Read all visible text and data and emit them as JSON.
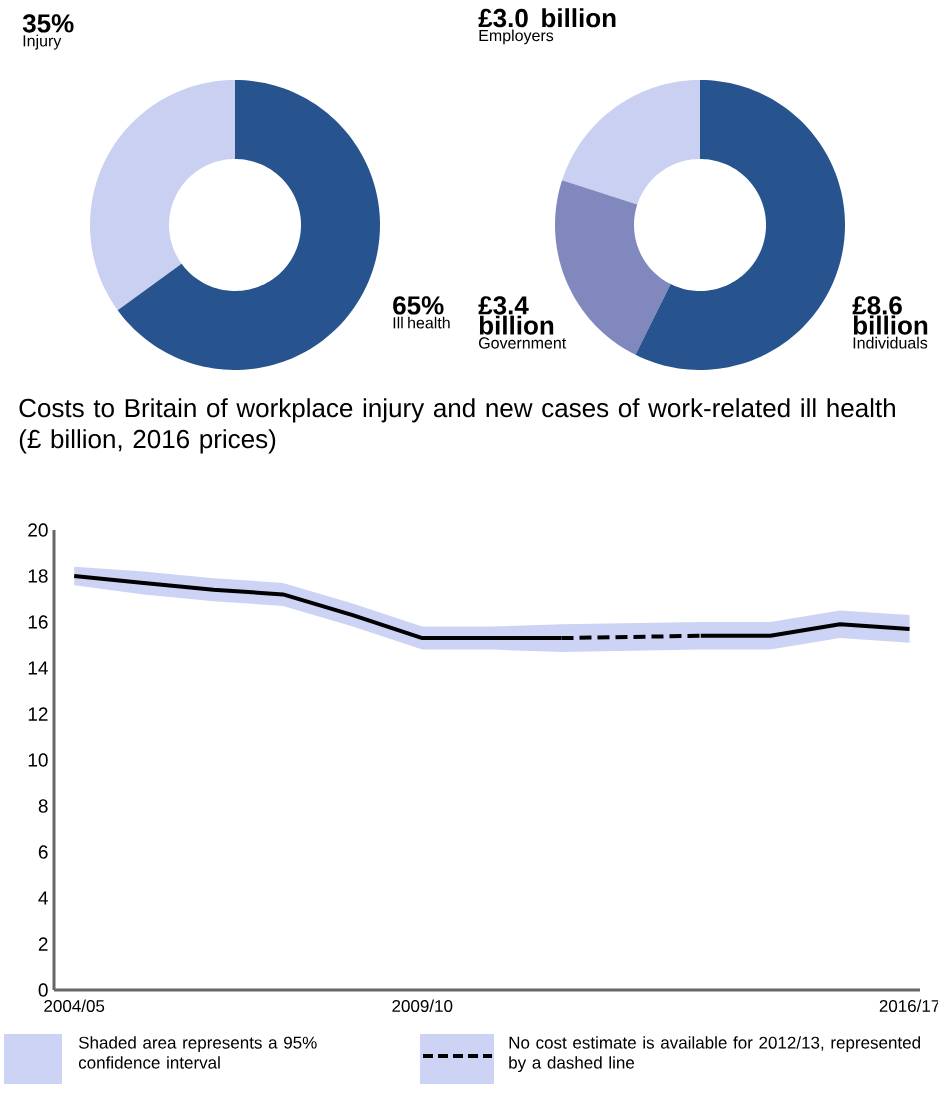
{
  "chart_data": [
    {
      "type": "donut",
      "categories": [
        "Injury",
        "Ill health"
      ],
      "values": [
        35,
        65
      ],
      "value_labels": [
        "35%",
        "65%"
      ],
      "colors": [
        "#c9d0f2",
        "#27538f"
      ]
    },
    {
      "type": "donut",
      "categories": [
        "Employers",
        "Government",
        "Individuals"
      ],
      "values": [
        3.0,
        3.4,
        8.6
      ],
      "value_labels": [
        "£3.0 billion",
        "£3.4 billion",
        "£8.6 billion"
      ],
      "colors": [
        "#c9d0f2",
        "#8088bd",
        "#27538f"
      ]
    },
    {
      "type": "line",
      "title": "Costs to Britain of workplace injury and new cases of work-related ill health (£ billion, 2016 prices)",
      "categories": [
        "2004/05",
        null,
        null,
        null,
        null,
        "2009/10",
        null,
        null,
        null,
        null,
        null,
        null,
        "2016/17"
      ],
      "series": [
        {
          "color": "#000000",
          "values": [
            18.0,
            17.7,
            17.4,
            17.2,
            16.3,
            15.3,
            15.3,
            15.3,
            null,
            15.4,
            15.4,
            15.9,
            15.7
          ],
          "lower": [
            17.6,
            17.2,
            16.9,
            16.7,
            15.8,
            14.8,
            14.8,
            14.7,
            null,
            14.8,
            14.8,
            15.3,
            15.1
          ],
          "upper": [
            18.4,
            18.2,
            17.9,
            17.7,
            16.8,
            15.8,
            15.8,
            15.9,
            null,
            16.0,
            16.0,
            16.5,
            16.3
          ]
        }
      ],
      "line_style": "solid",
      "ylim": [
        0,
        20
      ],
      "yticks": [
        0,
        2,
        4,
        6,
        8,
        10,
        12,
        14,
        16,
        18,
        20
      ],
      "annotations": [
        "Shaded area represents a 95% confidence interval",
        "No cost estimate is available for 2012/13, represented by a dashed line"
      ]
    }
  ]
}
